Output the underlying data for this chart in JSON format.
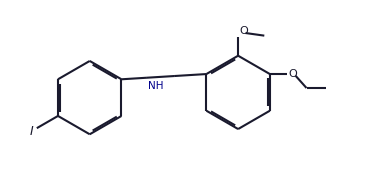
{
  "bg_color": "#ffffff",
  "line_color": "#1a1a2e",
  "nh_color": "#00008B",
  "lw": 1.5,
  "dbo": 0.018,
  "r": 0.42,
  "figsize": [
    3.68,
    1.9
  ],
  "dpi": 100,
  "xlim": [
    0.0,
    4.2
  ],
  "ylim": [
    -0.25,
    1.35
  ]
}
